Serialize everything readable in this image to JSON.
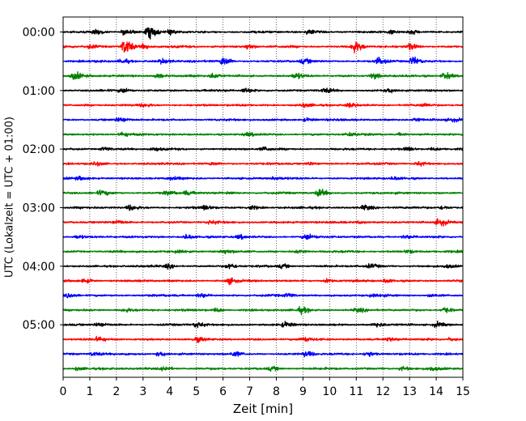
{
  "chart_data": {
    "type": "line",
    "title": "",
    "xlabel": "Zeit  [min]",
    "ylabel": "UTC (Lokalzeit = UTC + 01:00)",
    "xlim": [
      0,
      15
    ],
    "x_ticks": [
      "0",
      "1",
      "2",
      "3",
      "4",
      "5",
      "6",
      "7",
      "8",
      "9",
      "10",
      "11",
      "12",
      "13",
      "14",
      "15"
    ],
    "y_ticks": [
      "00:00",
      "01:00",
      "02:00",
      "03:00",
      "04:00",
      "05:00"
    ],
    "row_interval_min": 15,
    "grid": "vertical dotted",
    "colors": [
      "#000000",
      "#ff0000",
      "#0000ff",
      "#008000"
    ],
    "rows": [
      {
        "start": "00:00",
        "color": "#000000",
        "events": [
          [
            3.2,
            1.0
          ],
          [
            2.3,
            0.5
          ],
          [
            1.2,
            0.4
          ],
          [
            4.0,
            0.35
          ],
          [
            9.2,
            0.35
          ],
          [
            12.3,
            0.3
          ],
          [
            13.0,
            0.3
          ]
        ]
      },
      {
        "start": "00:15",
        "color": "#ff0000",
        "events": [
          [
            2.3,
            1.3
          ],
          [
            10.9,
            1.0
          ],
          [
            3.0,
            0.4
          ],
          [
            6.9,
            0.4
          ],
          [
            1.0,
            0.3
          ],
          [
            13.0,
            0.45
          ]
        ]
      },
      {
        "start": "00:30",
        "color": "#0000ff",
        "events": [
          [
            6.0,
            0.75
          ],
          [
            11.8,
            0.55
          ],
          [
            13.1,
            0.65
          ],
          [
            2.2,
            0.45
          ],
          [
            3.7,
            0.4
          ],
          [
            9.0,
            0.35
          ]
        ]
      },
      {
        "start": "00:45",
        "color": "#008000",
        "events": [
          [
            0.4,
            0.55
          ],
          [
            3.5,
            0.35
          ],
          [
            5.6,
            0.4
          ],
          [
            11.6,
            0.45
          ],
          [
            14.3,
            0.55
          ],
          [
            8.7,
            0.4
          ]
        ]
      },
      {
        "start": "01:00",
        "color": "#000000",
        "events": [
          [
            6.8,
            0.45
          ],
          [
            2.2,
            0.35
          ],
          [
            9.8,
            0.3
          ],
          [
            12.2,
            0.3
          ]
        ]
      },
      {
        "start": "01:15",
        "color": "#ff0000",
        "events": [
          [
            3.0,
            0.25
          ],
          [
            9.0,
            0.25
          ],
          [
            10.7,
            0.3
          ],
          [
            13.5,
            0.22
          ]
        ]
      },
      {
        "start": "01:30",
        "color": "#0000ff",
        "events": [
          [
            2.1,
            0.35
          ],
          [
            9.1,
            0.25
          ],
          [
            13.2,
            0.3
          ],
          [
            14.6,
            0.2
          ]
        ]
      },
      {
        "start": "01:45",
        "color": "#008000",
        "events": [
          [
            2.2,
            0.35
          ],
          [
            6.9,
            0.2
          ],
          [
            10.7,
            0.22
          ],
          [
            12.6,
            0.2
          ]
        ]
      },
      {
        "start": "02:00",
        "color": "#000000",
        "events": [
          [
            1.5,
            0.3
          ],
          [
            3.4,
            0.25
          ],
          [
            7.5,
            0.3
          ],
          [
            12.9,
            0.3
          ],
          [
            13.8,
            0.2
          ]
        ]
      },
      {
        "start": "02:15",
        "color": "#ff0000",
        "events": [
          [
            1.2,
            0.25
          ],
          [
            5.6,
            0.22
          ],
          [
            9.2,
            0.2
          ],
          [
            13.3,
            0.35
          ]
        ]
      },
      {
        "start": "02:30",
        "color": "#0000ff",
        "events": [
          [
            0.6,
            0.2
          ],
          [
            4.0,
            0.2
          ],
          [
            7.9,
            0.22
          ],
          [
            12.4,
            0.2
          ]
        ]
      },
      {
        "start": "02:45",
        "color": "#008000",
        "events": [
          [
            9.6,
            0.55
          ],
          [
            1.4,
            0.35
          ],
          [
            3.9,
            0.3
          ],
          [
            4.6,
            0.3
          ],
          [
            6.2,
            0.22
          ]
        ]
      },
      {
        "start": "03:00",
        "color": "#000000",
        "events": [
          [
            2.5,
            0.45
          ],
          [
            5.3,
            0.35
          ],
          [
            11.3,
            0.4
          ],
          [
            7.0,
            0.3
          ],
          [
            14.2,
            0.3
          ]
        ]
      },
      {
        "start": "03:15",
        "color": "#ff0000",
        "events": [
          [
            14.1,
            0.55
          ],
          [
            2.0,
            0.25
          ],
          [
            5.5,
            0.25
          ],
          [
            11.1,
            0.22
          ]
        ]
      },
      {
        "start": "03:30",
        "color": "#0000ff",
        "events": [
          [
            9.1,
            0.45
          ],
          [
            4.6,
            0.35
          ],
          [
            0.5,
            0.25
          ],
          [
            6.6,
            0.3
          ],
          [
            12.8,
            0.25
          ]
        ]
      },
      {
        "start": "03:45",
        "color": "#008000",
        "events": [
          [
            4.3,
            0.35
          ],
          [
            6.0,
            0.3
          ],
          [
            8.8,
            0.25
          ],
          [
            12.9,
            0.25
          ]
        ]
      },
      {
        "start": "04:00",
        "color": "#000000",
        "events": [
          [
            6.2,
            0.45
          ],
          [
            3.9,
            0.3
          ],
          [
            8.2,
            0.3
          ],
          [
            11.5,
            0.25
          ],
          [
            14.4,
            0.22
          ]
        ]
      },
      {
        "start": "04:15",
        "color": "#ff0000",
        "events": [
          [
            6.2,
            0.45
          ],
          [
            0.8,
            0.3
          ],
          [
            9.9,
            0.3
          ],
          [
            12.1,
            0.3
          ]
        ]
      },
      {
        "start": "04:30",
        "color": "#0000ff",
        "events": [
          [
            5.1,
            0.35
          ],
          [
            0.2,
            0.3
          ],
          [
            8.4,
            0.3
          ],
          [
            11.6,
            0.3
          ],
          [
            13.8,
            0.25
          ]
        ]
      },
      {
        "start": "04:45",
        "color": "#008000",
        "events": [
          [
            14.3,
            0.5
          ],
          [
            8.9,
            0.45
          ],
          [
            2.3,
            0.3
          ],
          [
            5.7,
            0.3
          ],
          [
            11.0,
            0.3
          ]
        ]
      },
      {
        "start": "05:00",
        "color": "#000000",
        "events": [
          [
            5.0,
            0.45
          ],
          [
            1.3,
            0.3
          ],
          [
            8.3,
            0.35
          ],
          [
            11.7,
            0.35
          ],
          [
            14.0,
            0.4
          ]
        ]
      },
      {
        "start": "05:15",
        "color": "#ff0000",
        "events": [
          [
            1.3,
            0.35
          ],
          [
            5.0,
            0.3
          ],
          [
            9.0,
            0.3
          ],
          [
            12.2,
            0.3
          ],
          [
            14.5,
            0.25
          ]
        ]
      },
      {
        "start": "05:30",
        "color": "#0000ff",
        "events": [
          [
            9.1,
            0.45
          ],
          [
            11.4,
            0.45
          ],
          [
            3.6,
            0.35
          ],
          [
            6.4,
            0.35
          ],
          [
            1.1,
            0.3
          ]
        ]
      },
      {
        "start": "05:45",
        "color": "#008000",
        "events": [
          [
            3.8,
            0.35
          ],
          [
            0.5,
            0.25
          ],
          [
            7.8,
            0.3
          ],
          [
            12.7,
            0.3
          ],
          [
            13.8,
            0.25
          ]
        ]
      }
    ]
  }
}
